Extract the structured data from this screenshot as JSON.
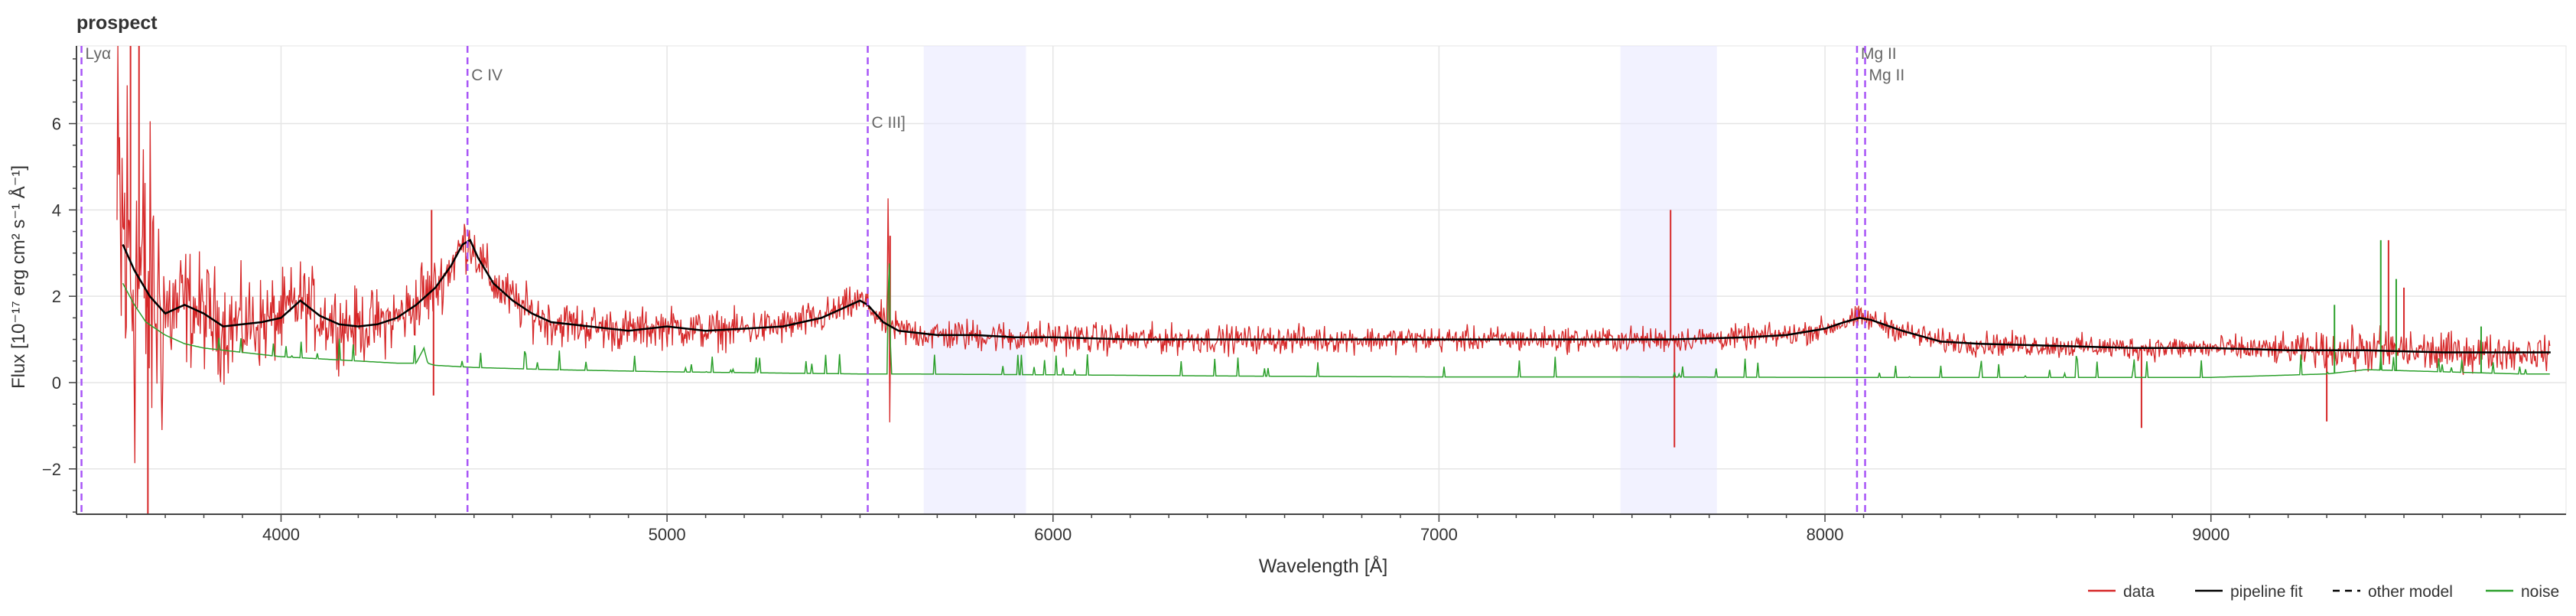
{
  "chart_data": {
    "type": "line",
    "title": "prospect",
    "xlabel": "Wavelength [Å]",
    "ylabel": "Flux [10⁻¹⁷ erg cm² s⁻¹ Å⁻¹]",
    "xlim": [
      3470,
      9920
    ],
    "ylim": [
      -3.05,
      7.8
    ],
    "x_ticks": [
      4000,
      5000,
      6000,
      7000,
      8000,
      9000
    ],
    "y_ticks": [
      -2,
      0,
      2,
      4,
      6
    ],
    "grid": true,
    "legend_position": "bottom-right",
    "legend": [
      {
        "label": "data",
        "color": "#d62728",
        "style": "solid"
      },
      {
        "label": "pipeline fit",
        "color": "#000000",
        "style": "solid"
      },
      {
        "label": "other model",
        "color": "#000000",
        "style": "dashed"
      },
      {
        "label": "noise",
        "color": "#2ca02c",
        "style": "solid"
      }
    ],
    "shaded_regions": [
      {
        "x0": 5665,
        "x1": 5930,
        "color": "#e8e8ff"
      },
      {
        "x0": 7470,
        "x1": 7720,
        "color": "#e8e8ff"
      }
    ],
    "emission_lines": [
      {
        "label": "Lyα",
        "x": 3483,
        "label_y": 7.5
      },
      {
        "label": "C IV",
        "x": 4483,
        "label_y": 7.0
      },
      {
        "label": "C III]",
        "x": 5520,
        "label_y": 5.9
      },
      {
        "label": "Mg II",
        "x": 8083,
        "label_y": 7.5
      },
      {
        "label": "Mg II",
        "x": 8104,
        "label_y": 7.0
      }
    ],
    "series": [
      {
        "name": "pipeline fit",
        "color": "#000000",
        "x": [
          3590,
          3620,
          3660,
          3700,
          3750,
          3800,
          3850,
          3900,
          3950,
          4000,
          4050,
          4100,
          4150,
          4200,
          4250,
          4300,
          4350,
          4400,
          4440,
          4470,
          4490,
          4510,
          4550,
          4600,
          4650,
          4700,
          4800,
          4900,
          5000,
          5100,
          5200,
          5300,
          5400,
          5450,
          5500,
          5520,
          5560,
          5600,
          5700,
          5800,
          5900,
          6000,
          6200,
          6400,
          6600,
          6800,
          7000,
          7200,
          7400,
          7600,
          7800,
          7900,
          8000,
          8050,
          8090,
          8120,
          8200,
          8300,
          8400,
          8600,
          8800,
          9000,
          9200,
          9400,
          9600,
          9800,
          9880
        ],
        "y": [
          3.2,
          2.6,
          2.0,
          1.6,
          1.8,
          1.6,
          1.3,
          1.35,
          1.4,
          1.5,
          1.9,
          1.55,
          1.35,
          1.3,
          1.35,
          1.5,
          1.8,
          2.2,
          2.7,
          3.2,
          3.3,
          2.9,
          2.3,
          1.9,
          1.6,
          1.4,
          1.3,
          1.2,
          1.3,
          1.2,
          1.25,
          1.3,
          1.5,
          1.7,
          1.9,
          1.8,
          1.4,
          1.2,
          1.1,
          1.1,
          1.05,
          1.05,
          1.0,
          1.0,
          1.0,
          1.0,
          1.0,
          1.0,
          1.0,
          1.0,
          1.05,
          1.1,
          1.25,
          1.4,
          1.5,
          1.45,
          1.2,
          0.95,
          0.9,
          0.85,
          0.8,
          0.8,
          0.75,
          0.75,
          0.7,
          0.7,
          0.7
        ]
      },
      {
        "name": "noise",
        "color": "#2ca02c",
        "x": [
          3590,
          3620,
          3650,
          3700,
          3750,
          3800,
          3900,
          4000,
          4100,
          4200,
          4300,
          4350,
          4370,
          4380,
          4390,
          4400,
          4500,
          4700,
          5000,
          5300,
          5500,
          5570,
          5575,
          5580,
          5600,
          6000,
          6500,
          7000,
          7500,
          8000,
          8500,
          9000,
          9300,
          9400,
          9600,
          9800,
          9880
        ],
        "y": [
          2.3,
          1.8,
          1.4,
          1.1,
          0.9,
          0.8,
          0.7,
          0.6,
          0.55,
          0.5,
          0.45,
          0.45,
          0.8,
          0.45,
          0.42,
          0.4,
          0.35,
          0.3,
          0.25,
          0.22,
          0.2,
          0.2,
          3.4,
          0.2,
          0.2,
          0.18,
          0.15,
          0.13,
          0.13,
          0.12,
          0.12,
          0.12,
          0.2,
          0.3,
          0.25,
          0.2,
          0.2
        ]
      }
    ],
    "data_spikes": [
      {
        "x": 3610,
        "y": 7.8
      },
      {
        "x": 3632,
        "y": 7.8
      },
      {
        "x": 3655,
        "y": -3.05
      },
      {
        "x": 4390,
        "y": 4.0
      },
      {
        "x": 4395,
        "y": -0.3
      },
      {
        "x": 5578,
        "y": 3.4
      },
      {
        "x": 7600,
        "y": 4.0
      },
      {
        "x": 7610,
        "y": -1.5
      },
      {
        "x": 8820,
        "y": -1.05
      },
      {
        "x": 9300,
        "y": -0.9
      },
      {
        "x": 9460,
        "y": 3.3
      },
      {
        "x": 9500,
        "y": 2.2
      }
    ],
    "noise_spikes": [
      {
        "x": 9440,
        "y": 3.3
      },
      {
        "x": 9480,
        "y": 2.4
      },
      {
        "x": 9320,
        "y": 1.8
      },
      {
        "x": 9700,
        "y": 1.3
      }
    ]
  }
}
